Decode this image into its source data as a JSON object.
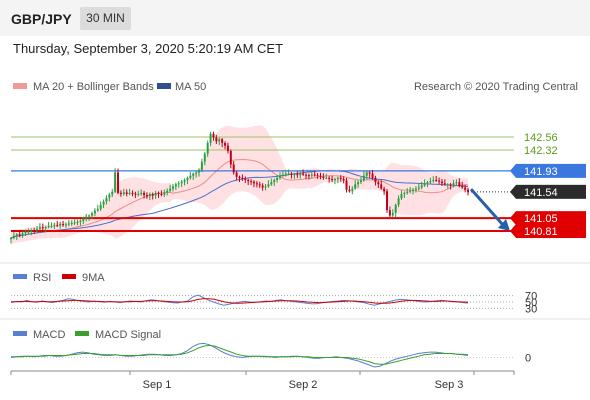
{
  "header": {
    "symbol": "GBP/JPY",
    "timeframe": "30 MIN"
  },
  "date_line": "Thursday, September 3, 2020 5:20:19 AM CET",
  "legend": {
    "ma20": "MA 20 + Bollinger Bands",
    "ma50": "MA 50",
    "credit": "Research © 2020 Trading Central"
  },
  "rsi_legend": {
    "rsi": "RSI",
    "ma": "9MA"
  },
  "macd_legend": {
    "macd": "MACD",
    "signal": "MACD Signal"
  },
  "colors": {
    "up": "#26a040",
    "down": "#c0001a",
    "ma50": "#4a6fc8",
    "band": "#ffc8cc",
    "resistance": "#9bc36b",
    "support": "#e00000",
    "pivot": "#3a78e0",
    "arrow": "#2b5ea8"
  },
  "chart_data": [
    {
      "type": "candlestick",
      "title": "",
      "x_ticks": [
        "Sep 1",
        "Sep 2",
        "Sep 3"
      ],
      "ylim": [
        140.55,
        143.25
      ],
      "current_price": 141.54,
      "price_labels": [
        "142.56",
        "142.32",
        "141.93",
        "141.54",
        "141.05",
        "140.81"
      ],
      "levels": [
        {
          "value": 142.56,
          "kind": "resistance"
        },
        {
          "value": 142.32,
          "kind": "resistance"
        },
        {
          "value": 141.93,
          "kind": "pivot"
        },
        {
          "value": 141.05,
          "kind": "support"
        },
        {
          "value": 140.81,
          "kind": "support"
        }
      ],
      "forecast_arrow": {
        "from": 141.59,
        "to": 140.81,
        "direction": "down"
      },
      "closes": [
        140.68,
        140.72,
        140.75,
        140.74,
        140.77,
        140.79,
        140.8,
        140.83,
        140.82,
        140.85,
        140.88,
        140.86,
        140.88,
        140.9,
        140.9,
        140.92,
        140.91,
        140.94,
        140.93,
        140.93,
        140.95,
        140.96,
        140.97,
        140.98,
        141.0,
        141.04,
        141.08,
        141.1,
        141.14,
        141.19,
        141.22,
        141.3,
        141.36,
        141.43,
        141.49,
        141.54,
        141.9,
        141.52,
        141.5,
        141.53,
        141.5,
        141.52,
        141.51,
        141.49,
        141.5,
        141.52,
        141.48,
        141.46,
        141.5,
        141.47,
        141.52,
        141.5,
        141.49,
        141.53,
        141.56,
        141.6,
        141.64,
        141.68,
        141.7,
        141.73,
        141.76,
        141.8,
        141.84,
        141.88,
        141.9,
        141.95,
        142.1,
        142.25,
        142.45,
        142.62,
        142.55,
        142.48,
        142.52,
        142.45,
        142.4,
        142.3,
        142.05,
        141.9,
        141.82,
        141.8,
        141.78,
        141.76,
        141.74,
        141.73,
        141.7,
        141.68,
        141.66,
        141.62,
        141.64,
        141.68,
        141.72,
        141.76,
        141.8,
        141.84,
        141.86,
        141.88,
        141.88,
        141.86,
        141.87,
        141.85,
        141.88,
        141.86,
        141.85,
        141.84,
        141.86,
        141.85,
        141.84,
        141.82,
        141.8,
        141.8,
        141.78,
        141.76,
        141.78,
        141.8,
        141.78,
        141.75,
        141.58,
        141.55,
        141.6,
        141.68,
        141.72,
        141.75,
        141.84,
        141.9,
        141.88,
        141.8,
        141.72,
        141.68,
        141.6,
        141.55,
        141.2,
        141.1,
        141.15,
        141.3,
        141.42,
        141.5,
        141.52,
        141.54,
        141.56,
        141.58,
        141.6,
        141.62,
        141.66,
        141.7,
        141.72,
        141.74,
        141.76,
        141.75,
        141.73,
        141.7,
        141.68,
        141.68,
        141.66,
        141.7,
        141.72,
        141.65,
        141.62,
        141.58,
        141.54
      ]
    },
    {
      "type": "line",
      "title": "RSI",
      "y_ticks": [
        "70",
        "50",
        "30"
      ],
      "ylim": [
        0,
        100
      ],
      "series": [
        {
          "name": "RSI",
          "values": [
            48,
            52,
            50,
            55,
            51,
            49,
            53,
            50,
            48,
            52,
            55,
            60,
            58,
            54,
            52,
            50,
            53,
            51,
            49,
            52,
            50,
            48,
            51,
            53,
            52,
            50,
            54,
            57,
            55,
            52,
            50,
            48,
            47,
            50,
            53,
            66,
            72,
            64,
            56,
            50,
            44,
            40,
            43,
            47,
            50,
            52,
            50,
            49,
            51,
            53,
            52,
            55,
            57,
            54,
            52,
            50,
            48,
            46,
            44,
            45,
            48,
            50,
            52,
            53,
            55,
            54,
            52,
            50,
            48,
            43,
            40,
            44,
            48,
            52,
            56,
            58,
            57,
            55,
            53,
            51,
            50,
            52,
            54,
            55,
            53,
            51,
            50,
            48,
            47
          ]
        },
        {
          "name": "9MA",
          "values": [
            51,
            51,
            52,
            52,
            51,
            51,
            52,
            51,
            51,
            52,
            53,
            54,
            55,
            55,
            54,
            53,
            52,
            52,
            51,
            51,
            51,
            50,
            51,
            51,
            52,
            52,
            53,
            54,
            54,
            53,
            52,
            51,
            50,
            50,
            51,
            54,
            58,
            60,
            60,
            59,
            55,
            51,
            48,
            46,
            46,
            47,
            48,
            49,
            50,
            51,
            52,
            53,
            54,
            54,
            54,
            53,
            52,
            50,
            49,
            48,
            48,
            49,
            50,
            51,
            52,
            53,
            53,
            52,
            51,
            49,
            47,
            46,
            46,
            47,
            49,
            52,
            54,
            55,
            55,
            54,
            53,
            52,
            52,
            53,
            53,
            52,
            51,
            50,
            49
          ]
        }
      ]
    },
    {
      "type": "line",
      "title": "MACD",
      "y_ticks": [
        "0"
      ],
      "ylim": [
        -0.2,
        0.26
      ],
      "series": [
        {
          "name": "MACD",
          "values": [
            0.0,
            0.01,
            0.02,
            0.02,
            0.01,
            0.02,
            0.03,
            0.03,
            0.02,
            0.02,
            0.03,
            0.05,
            0.07,
            0.08,
            0.07,
            0.05,
            0.04,
            0.03,
            0.03,
            0.04,
            0.03,
            0.02,
            0.02,
            0.03,
            0.04,
            0.05,
            0.05,
            0.04,
            0.03,
            0.03,
            0.04,
            0.06,
            0.1,
            0.16,
            0.2,
            0.21,
            0.19,
            0.15,
            0.1,
            0.06,
            0.03,
            0.01,
            0.0,
            0.01,
            0.02,
            0.02,
            0.01,
            0.01,
            0.0,
            0.01,
            0.01,
            0.02,
            0.02,
            0.01,
            0.0,
            -0.01,
            -0.01,
            0.0,
            0.0,
            0.01,
            0.0,
            -0.01,
            -0.03,
            -0.05,
            -0.08,
            -0.11,
            -0.14,
            -0.13,
            -0.09,
            -0.05,
            -0.02,
            0.0,
            0.02,
            0.04,
            0.06,
            0.07,
            0.08,
            0.08,
            0.07,
            0.06,
            0.06,
            0.05,
            0.04,
            0.03
          ]
        },
        {
          "name": "MACD Signal",
          "values": [
            0.01,
            0.01,
            0.01,
            0.02,
            0.02,
            0.02,
            0.02,
            0.03,
            0.03,
            0.03,
            0.03,
            0.04,
            0.05,
            0.06,
            0.06,
            0.06,
            0.05,
            0.04,
            0.04,
            0.04,
            0.03,
            0.03,
            0.03,
            0.03,
            0.03,
            0.04,
            0.04,
            0.04,
            0.04,
            0.04,
            0.04,
            0.05,
            0.07,
            0.1,
            0.14,
            0.17,
            0.18,
            0.17,
            0.14,
            0.11,
            0.08,
            0.05,
            0.03,
            0.02,
            0.02,
            0.02,
            0.02,
            0.01,
            0.01,
            0.01,
            0.01,
            0.01,
            0.02,
            0.01,
            0.01,
            0.0,
            0.0,
            0.0,
            0.0,
            0.0,
            0.0,
            0.0,
            -0.01,
            -0.02,
            -0.04,
            -0.06,
            -0.09,
            -0.1,
            -0.1,
            -0.08,
            -0.06,
            -0.04,
            -0.02,
            0.0,
            0.02,
            0.04,
            0.05,
            0.06,
            0.06,
            0.06,
            0.06,
            0.05,
            0.05,
            0.04
          ]
        }
      ]
    }
  ]
}
